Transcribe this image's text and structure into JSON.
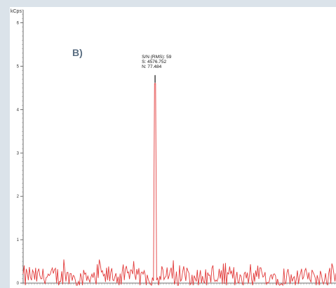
{
  "chart_data": {
    "type": "line",
    "panel_label": "B)",
    "y_unit": "kCps",
    "ylim": [
      0,
      6.3
    ],
    "y_ticks": [
      "0",
      "1",
      "2",
      "3",
      "4",
      "5",
      "6"
    ],
    "grid": false,
    "series": [
      {
        "color": "#e23b3b",
        "baseline_kcps": 0.15,
        "noise_kcps": 0.22,
        "peak": {
          "position": 0.42,
          "value_kcps": 4.6
        }
      }
    ],
    "annotation": {
      "lines": [
        "S/N (RMS): 59",
        "S: 4576.752",
        "N: 77.484"
      ]
    }
  }
}
